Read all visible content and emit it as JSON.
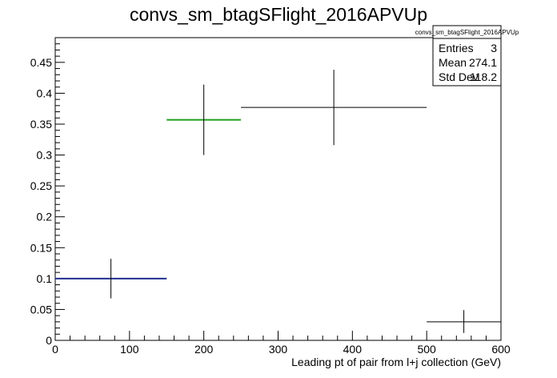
{
  "chart_data": {
    "type": "scatter",
    "title": "convs_sm_btagSFlight_2016APVUp",
    "xlabel": "Leading pt of pair from l+j collection (GeV)",
    "ylabel": "",
    "xlim": [
      0,
      600
    ],
    "ylim": [
      0,
      0.49
    ],
    "x_ticks": [
      0,
      100,
      200,
      300,
      400,
      500,
      600
    ],
    "y_ticks": [
      0,
      0.05,
      0.1,
      0.15,
      0.2,
      0.25,
      0.3,
      0.35,
      0.4,
      0.45
    ],
    "grid": false,
    "points": [
      {
        "x": 75,
        "xlow": 0,
        "xhigh": 150,
        "y": 0.1,
        "ylow": 0.068,
        "yhigh": 0.132,
        "color": "#1f2f8f"
      },
      {
        "x": 200,
        "xlow": 150,
        "xhigh": 250,
        "y": 0.357,
        "ylow": 0.3,
        "yhigh": 0.414,
        "color": "#1fa01f"
      },
      {
        "x": 375,
        "xlow": 250,
        "xhigh": 500,
        "y": 0.377,
        "ylow": 0.316,
        "yhigh": 0.438,
        "color": "#000000"
      },
      {
        "x": 550,
        "xlow": 500,
        "xhigh": 600,
        "y": 0.03,
        "ylow": 0.012,
        "yhigh": 0.049,
        "color": "#000000"
      }
    ],
    "stats_box": {
      "name": "convs_sm_btagSFlight_2016APVUp",
      "rows": [
        {
          "label": "Entries",
          "value": "3"
        },
        {
          "label": "Mean",
          "value": "274.1"
        },
        {
          "label": "Std Dev",
          "value": "118.2"
        }
      ]
    }
  }
}
